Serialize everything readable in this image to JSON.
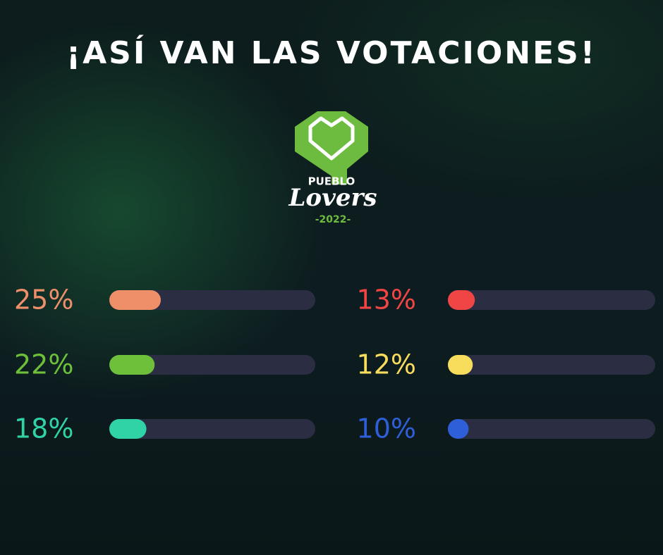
{
  "chart_data": {
    "type": "bar",
    "title": "¡ASÍ VAN LAS VOTACIONES!",
    "values": [
      25,
      22,
      18,
      13,
      12,
      10
    ],
    "value_labels": [
      "25%",
      "22%",
      "18%",
      "13%",
      "12%",
      "10%"
    ],
    "colors": [
      "#ee8f6a",
      "#6ec03a",
      "#2fd3a6",
      "#f04545",
      "#f8dc5c",
      "#2f5fd8"
    ],
    "xlim": [
      0,
      100
    ]
  },
  "logo": {
    "top": "PUEBLO",
    "name": "Lovers",
    "year": "-2022-"
  }
}
